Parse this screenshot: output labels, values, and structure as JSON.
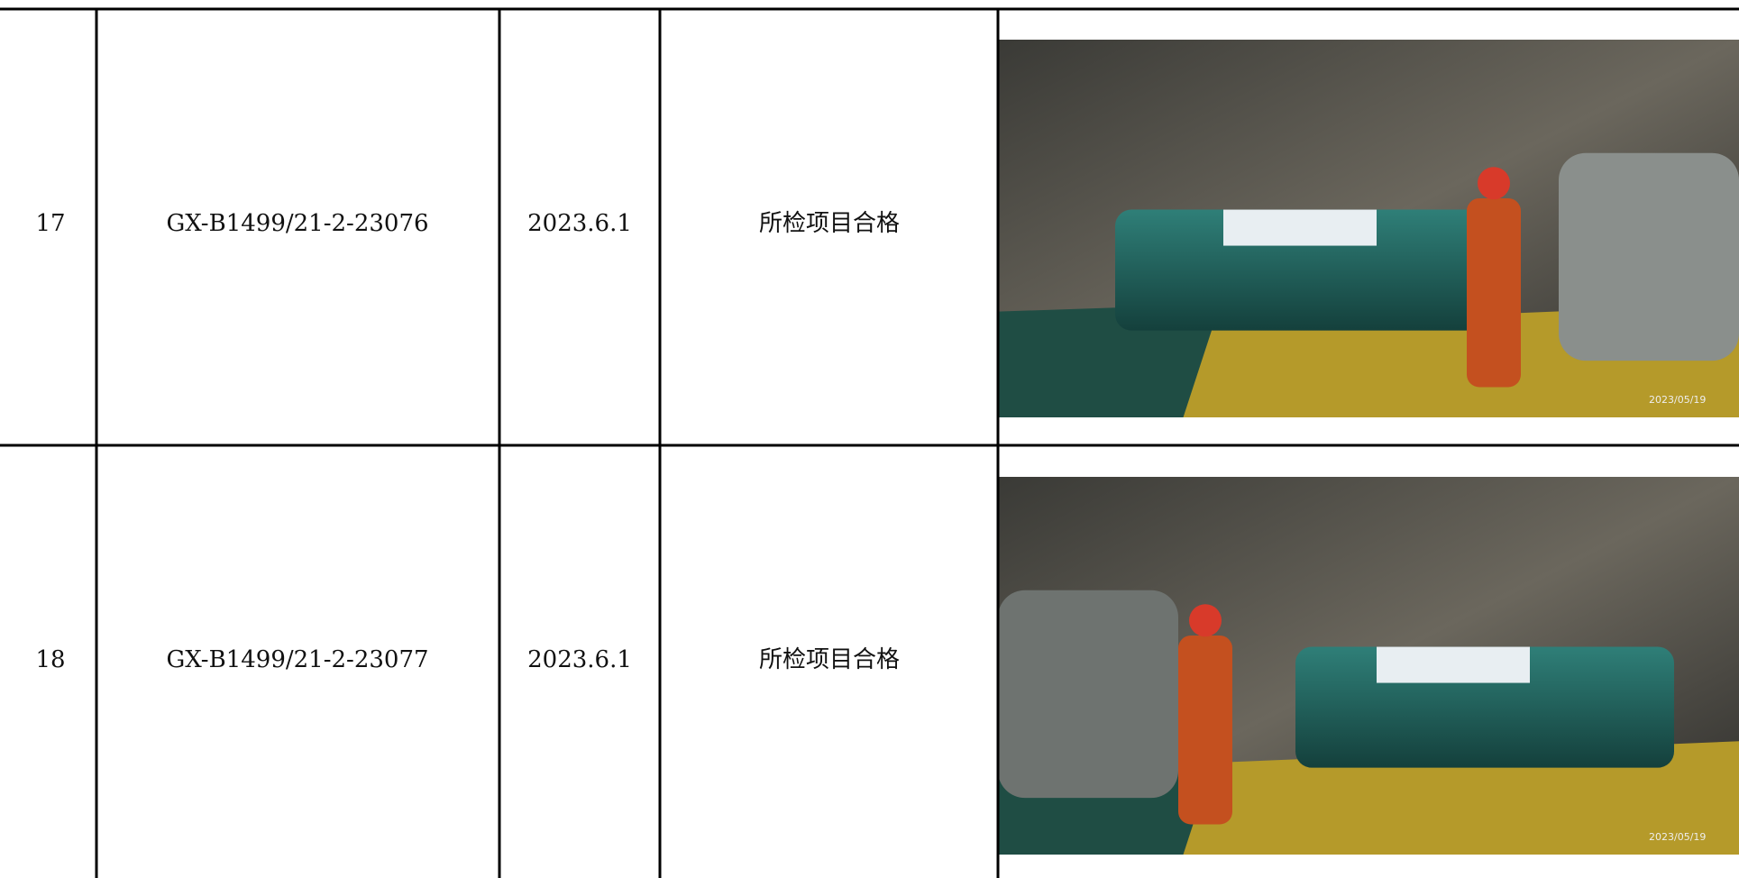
{
  "table": {
    "rows": [
      [
        "17",
        "GX-B1499/21-2-23076",
        "2023.6.1",
        "所检项目合格"
      ],
      [
        "18",
        "GX-B1499/21-2-23077",
        "2023.6.1",
        "所检项目合格"
      ]
    ]
  },
  "photos": [
    {
      "timestamp": "2023/05/19"
    },
    {
      "timestamp": "2023/05/19"
    }
  ]
}
